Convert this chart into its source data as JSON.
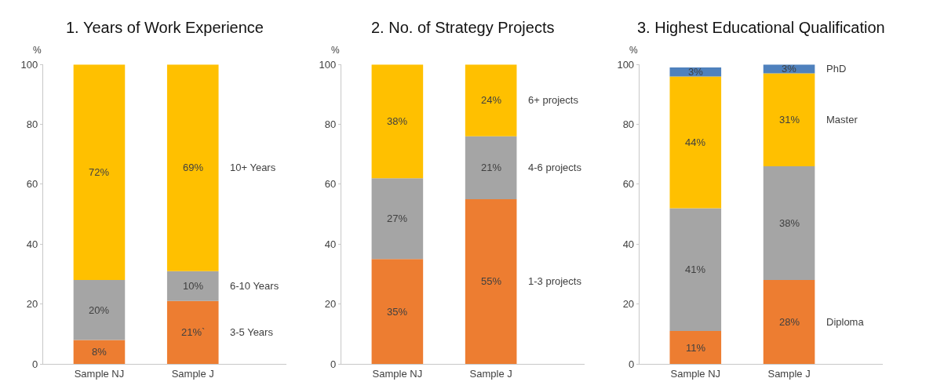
{
  "chart_data": [
    {
      "type": "bar",
      "title": "1. Years of Work Experience",
      "ylabel": "%",
      "categories": [
        "Sample NJ",
        "Sample J"
      ],
      "stacked": true,
      "ylim": [
        0,
        100
      ],
      "yticks": [
        0,
        20,
        40,
        60,
        80,
        100
      ],
      "series": [
        {
          "name": "3-5 Years",
          "color": "#ed7d31",
          "values": [
            8,
            21
          ],
          "value_labels": [
            "8%",
            "21%`"
          ]
        },
        {
          "name": "6-10 Years",
          "color": "#a5a5a5",
          "values": [
            20,
            10
          ],
          "value_labels": [
            "20%",
            "10%"
          ]
        },
        {
          "name": "10+ Years",
          "color": "#ffc000",
          "values": [
            72,
            69
          ],
          "value_labels": [
            "72%",
            "69%"
          ]
        }
      ]
    },
    {
      "type": "bar",
      "title": "2. No. of Strategy Projects",
      "ylabel": "%",
      "categories": [
        "Sample NJ",
        "Sample J"
      ],
      "stacked": true,
      "ylim": [
        0,
        100
      ],
      "yticks": [
        0,
        20,
        40,
        60,
        80,
        100
      ],
      "series": [
        {
          "name": "1-3 projects",
          "color": "#ed7d31",
          "values": [
            35,
            55
          ],
          "value_labels": [
            "35%",
            "55%"
          ]
        },
        {
          "name": "4-6 projects",
          "color": "#a5a5a5",
          "values": [
            27,
            21
          ],
          "value_labels": [
            "27%",
            "21%"
          ]
        },
        {
          "name": "6+ projects",
          "color": "#ffc000",
          "values": [
            38,
            24
          ],
          "value_labels": [
            "38%",
            "24%"
          ]
        }
      ]
    },
    {
      "type": "bar",
      "title": "3. Highest Educational Qualification",
      "ylabel": "%",
      "categories": [
        "Sample NJ",
        "Sample J"
      ],
      "stacked": true,
      "ylim": [
        0,
        100
      ],
      "yticks": [
        0,
        20,
        40,
        60,
        80,
        100
      ],
      "series": [
        {
          "name": "Diploma",
          "color": "#ed7d31",
          "values": [
            11,
            28
          ],
          "value_labels": [
            "11%",
            "28%"
          ]
        },
        {
          "color": "#a5a5a5",
          "values": [
            41,
            38
          ],
          "value_labels": [
            "41%",
            "38%"
          ]
        },
        {
          "name": "Master",
          "color": "#ffc000",
          "values": [
            44,
            31
          ],
          "value_labels": [
            "44%",
            "31%"
          ]
        },
        {
          "name": "PhD",
          "color": "#4f81bd",
          "values": [
            3,
            3
          ],
          "value_labels": [
            "3%",
            "3%"
          ]
        }
      ]
    }
  ]
}
